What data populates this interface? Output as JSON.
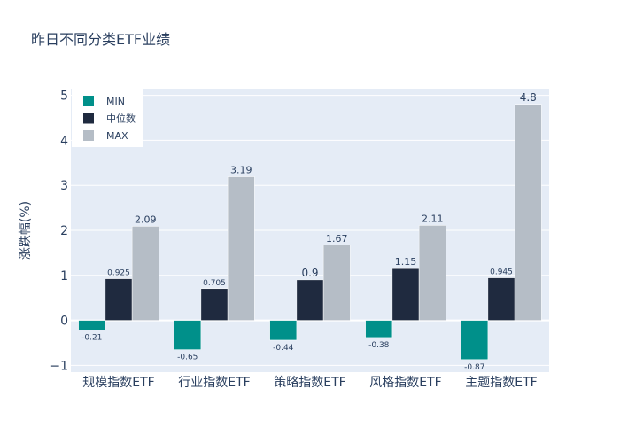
{
  "chart_data": {
    "type": "bar",
    "title": "昨日不同分类ETF业绩",
    "xlabel": "",
    "ylabel": "涨跌幅(%)",
    "categories": [
      "规模指数ETF",
      "行业指数ETF",
      "策略指数ETF",
      "风格指数ETF",
      "主题指数ETF"
    ],
    "series": [
      {
        "name": "MIN",
        "color": "#00908a",
        "values": [
          -0.21,
          -0.65,
          -0.44,
          -0.38,
          -0.87
        ],
        "labels": [
          "-0.21",
          "-0.65",
          "-0.44",
          "-0.38",
          "-0.87"
        ]
      },
      {
        "name": "中位数",
        "color": "#1f2a3f",
        "values": [
          0.925,
          0.705,
          0.9,
          1.15,
          0.945
        ],
        "labels": [
          "0.925",
          "0.705",
          "0.9",
          "1.15",
          "0.945"
        ]
      },
      {
        "name": "MAX",
        "color": "#b5bdc6",
        "values": [
          2.09,
          3.19,
          1.67,
          2.11,
          4.8
        ],
        "labels": [
          "2.09",
          "3.19",
          "1.67",
          "2.11",
          "4.8"
        ]
      }
    ],
    "ylim": [
      -1.15,
      5.15
    ],
    "yticks": [
      -1,
      0,
      1,
      2,
      3,
      4,
      5
    ],
    "ytick_labels": [
      "−1",
      "0",
      "1",
      "2",
      "3",
      "4",
      "5"
    ],
    "grid": true,
    "legend_position": "top-left"
  }
}
